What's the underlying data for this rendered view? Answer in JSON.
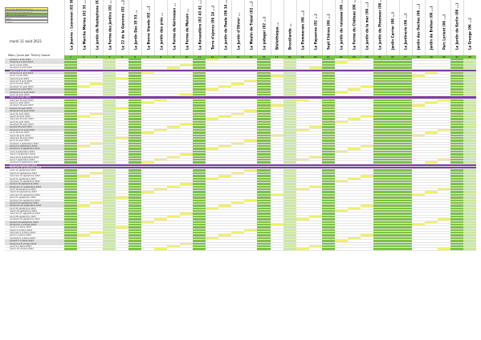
{
  "legend": [
    "Journée fermée/pleine",
    "Réservée par Jacques",
    "Réservée/Validée",
    "RDV",
    "Libre"
  ],
  "date_label": "mardi 11 août 2023",
  "corner_label": "Mois / jours par Thierry Sauce",
  "colors": {
    "green": "#7dc243",
    "light_green": "#c9e8a0",
    "white": "#ffffff",
    "yellow": "#f3f06a",
    "purple": "#7b3fa0",
    "grey": "#dedede"
  },
  "columns": [
    "La Jeanne - Lesneven (02 98 ...)",
    "La Marche Mérieu (02 33 ...)",
    "Le jardin de Rustophone (02 33 08 ...)",
    "La Ferme des Jardins (02 ...)",
    "Le 22 de la Garenne (02 ...)",
    "Le Jardin Des 35 53 ...",
    "La Bonne Viande (02 ...)",
    "Le jardin des prés ...",
    "La Ferme de Kérinouen ...",
    "La Ferme de Maison ...",
    "La Renaudière (02 43 41 ...)",
    "Terre d'ajoncs (06 14 ...)",
    "Le jardin de Paule (06 14 ...)",
    "Le Jardin d'Olivier ...",
    "Le Moulin de Trézel (02 ...)",
    "Le potager (02 ...)",
    "Bibliothèque ...",
    "Brocéliande ...",
    "La Pommeraie (06 ...)",
    "La Paysanne (02 ...)",
    "Sept Chênes (06 ...)",
    "Le jardin du ruisseau (06 ...)",
    "La Ferme du Château (06 ...)",
    "Le jardin de la mer (06 ...)",
    "Le jardin de Ploemeur (06 ...)",
    "Jardin Carrier (06 ...)",
    "La Jardinerie (06 ...)",
    "Jardin des Ouches (06 ...)",
    "Jardin de Bréhan (06 ...)",
    "Parc Lorient (06 ...)",
    "Le Jardin de Kerlin (06 ...)",
    "La Grange (06 ...)"
  ],
  "column_numbers": [
    "1",
    "2",
    "3",
    "4",
    "5",
    "6",
    "7",
    "8",
    "9",
    "10",
    "11",
    "12",
    "13",
    "14",
    "15",
    "16",
    "17",
    "18",
    "19",
    "20",
    "21",
    "22",
    "23",
    "24",
    "25",
    "26",
    "27",
    "28",
    "29",
    "30",
    "31",
    "32"
  ],
  "rows": [
    {
      "date": "samedi 1 août 2023",
      "type": "we"
    },
    {
      "date": "dimanche 2 août 2023",
      "type": "we"
    },
    {
      "date": "jeudi 3 août 2023",
      "type": "n"
    },
    {
      "date": "vendredi 4 août 2023",
      "type": "n"
    },
    {
      "date": "samedi 5 août 2023",
      "type": "sp"
    },
    {
      "date": "dimanche 6 août 2023",
      "type": "we"
    },
    {
      "date": "lundi 7 août 2023",
      "type": "n"
    },
    {
      "date": "mardi 8 août 2023",
      "type": "n"
    },
    {
      "date": "mercredi 9 août 2023",
      "type": "n"
    },
    {
      "date": "jeudi 10 août 2023",
      "type": "n"
    },
    {
      "date": "vendredi 11 août 2023",
      "type": "n"
    },
    {
      "date": "samedi 12 août 2023",
      "type": "we"
    },
    {
      "date": "dimanche 13 août 2023",
      "type": "we"
    },
    {
      "date": "lundi 14 août 2023",
      "type": "n"
    },
    {
      "date": "mardi 15 août 2023",
      "type": "sp"
    },
    {
      "date": "mercredi 16 août 2023",
      "type": "n"
    },
    {
      "date": "jeudi 17 août 2023",
      "type": "n"
    },
    {
      "date": "vendredi 18 août 2023",
      "type": "n"
    },
    {
      "date": "samedi 19 août 2023",
      "type": "we"
    },
    {
      "date": "dimanche 20 août 2023",
      "type": "we"
    },
    {
      "date": "lundi 21 août 2023",
      "type": "n"
    },
    {
      "date": "mardi 22 août 2023",
      "type": "n"
    },
    {
      "date": "mercredi 23 août 2023",
      "type": "n"
    },
    {
      "date": "jeudi 24 août 2023",
      "type": "n"
    },
    {
      "date": "vendredi 25 août 2023",
      "type": "n"
    },
    {
      "date": "samedi 26 août 2023",
      "type": "we"
    },
    {
      "date": "dimanche 27 août 2023",
      "type": "we"
    },
    {
      "date": "lundi 28 août 2023",
      "type": "n"
    },
    {
      "date": "mardi 29 août 2023",
      "type": "n"
    },
    {
      "date": "mercredi 30 août 2023",
      "type": "n"
    },
    {
      "date": "jeudi 31 août 2023",
      "type": "n"
    },
    {
      "date": "vendredi 1 septembre 2023",
      "type": "n"
    },
    {
      "date": "samedi 2 septembre 2023",
      "type": "we"
    },
    {
      "date": "dimanche 3 septembre 2023",
      "type": "we"
    },
    {
      "date": "lundi 4 septembre 2023",
      "type": "n"
    },
    {
      "date": "mardi 5 septembre 2023",
      "type": "n"
    },
    {
      "date": "mercredi 6 septembre 2023",
      "type": "n"
    },
    {
      "date": "jeudi 7 septembre 2023",
      "type": "n"
    },
    {
      "date": "vendredi 8 septembre 2023",
      "type": "n"
    },
    {
      "date": "samedi 9 septembre 2023",
      "type": "sp"
    },
    {
      "date": "dimanche 10 septembre 2023",
      "type": "sp"
    },
    {
      "date": "lundi 11 septembre 2023",
      "type": "n"
    },
    {
      "date": "mardi 12 septembre 2023",
      "type": "n"
    },
    {
      "date": "mercredi 13 septembre 2023",
      "type": "n"
    },
    {
      "date": "jeudi 14 septembre 2023",
      "type": "n"
    },
    {
      "date": "vendredi 15 septembre 2023",
      "type": "n"
    },
    {
      "date": "samedi 16 septembre 2023",
      "type": "we"
    },
    {
      "date": "dimanche 17 septembre 2023",
      "type": "we"
    },
    {
      "date": "lundi 18 septembre 2023",
      "type": "n"
    },
    {
      "date": "mardi 19 septembre 2023",
      "type": "n"
    },
    {
      "date": "mercredi 20 septembre 2023",
      "type": "n"
    },
    {
      "date": "jeudi 21 septembre 2023",
      "type": "n"
    },
    {
      "date": "vendredi 22 septembre 2023",
      "type": "n"
    },
    {
      "date": "samedi 23 septembre 2023",
      "type": "we"
    },
    {
      "date": "dimanche 24 septembre 2023",
      "type": "we"
    },
    {
      "date": "lundi 25 septembre 2023",
      "type": "n"
    },
    {
      "date": "mardi 26 septembre 2023",
      "type": "n"
    },
    {
      "date": "mercredi 27 septembre 2023",
      "type": "n"
    },
    {
      "date": "jeudi 28 septembre 2023",
      "type": "n"
    },
    {
      "date": "vendredi 29 septembre 2023",
      "type": "n"
    },
    {
      "date": "samedi 30 septembre 2023",
      "type": "we"
    },
    {
      "date": "dimanche 1 octobre 2023",
      "type": "we"
    },
    {
      "date": "lundi 2 octobre 2023",
      "type": "n"
    },
    {
      "date": "mardi 3 octobre 2023",
      "type": "n"
    },
    {
      "date": "mercredi 4 octobre 2023",
      "type": "n"
    },
    {
      "date": "jeudi 5 octobre 2023",
      "type": "n"
    },
    {
      "date": "vendredi 6 octobre 2023",
      "type": "n"
    },
    {
      "date": "samedi 7 octobre 2023",
      "type": "we"
    },
    {
      "date": "dimanche 8 octobre 2023",
      "type": "we"
    },
    {
      "date": "lundi 9 octobre 2023",
      "type": "n"
    },
    {
      "date": "mardi 10 octobre 2023",
      "type": "n"
    }
  ]
}
